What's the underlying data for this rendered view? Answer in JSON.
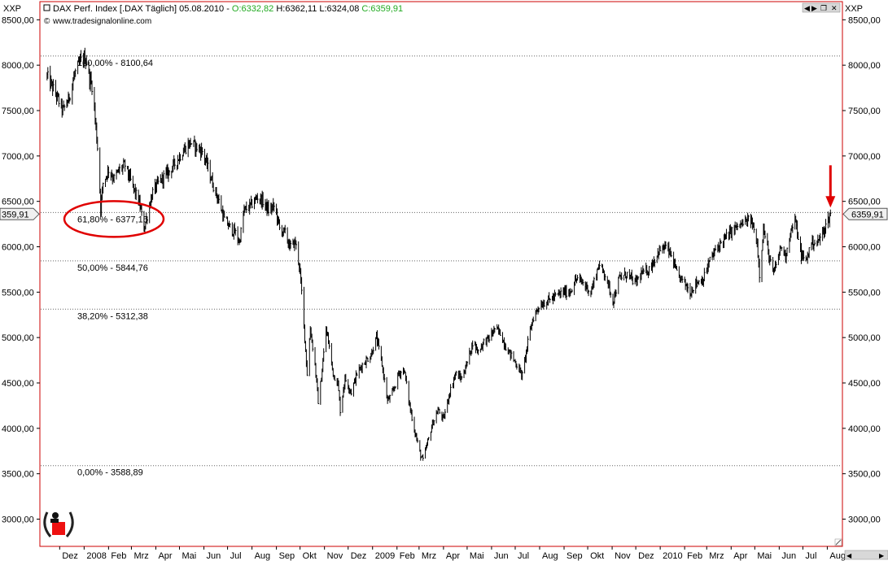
{
  "window": {
    "corner_left_label": "XXP",
    "corner_right_label": "XXP",
    "header": {
      "instrument": "DAX Perf. Index [.DAX  Täglich] 05.08.2010 - ",
      "open": "O:6332,82",
      "high": "H:6362,11",
      "low": "L:6324,08",
      "close": "C:6359,91",
      "open_color": "#22aa22",
      "close_color": "#22aa22"
    },
    "source": "www.tradesignalonline.com",
    "current_price_left": "359,91",
    "current_price_right": "6359,91",
    "frame_color": "#cc0000"
  },
  "chart_data": {
    "type": "candlestick",
    "title": "DAX Perf. Index [.DAX  Täglich] 05.08.2010",
    "y_ticks": [
      "3000,00",
      "3500,00",
      "4000,00",
      "4500,00",
      "5000,00",
      "5500,00",
      "6000,00",
      "6500,00",
      "7000,00",
      "7500,00",
      "8000,00",
      "8500,00"
    ],
    "y_tick_values": [
      3000,
      3500,
      4000,
      4500,
      5000,
      5500,
      6000,
      6500,
      7000,
      7500,
      8000,
      8500
    ],
    "ylim": [
      2700,
      8700
    ],
    "x_ticks": [
      "Dez",
      "2008",
      "Feb",
      "Mrz",
      "Apr",
      "Mai",
      "Jun",
      "Jul",
      "Aug",
      "Sep",
      "Okt",
      "Nov",
      "Dez",
      "2009",
      "Feb",
      "Mrz",
      "Apr",
      "Mai",
      "Jun",
      "Jul",
      "Aug",
      "Sep",
      "Okt",
      "Nov",
      "Dez",
      "2010",
      "Feb",
      "Mrz",
      "Apr",
      "Mai",
      "Jun",
      "Jul",
      "Aug"
    ],
    "x_tick_dates": [
      "2007-12-01",
      "2008-01-01",
      "2008-02-01",
      "2008-03-01",
      "2008-04-01",
      "2008-05-01",
      "2008-06-01",
      "2008-07-01",
      "2008-08-01",
      "2008-09-01",
      "2008-10-01",
      "2008-11-01",
      "2008-12-01",
      "2009-01-01",
      "2009-02-01",
      "2009-03-01",
      "2009-04-01",
      "2009-05-01",
      "2009-06-01",
      "2009-07-01",
      "2009-08-01",
      "2009-09-01",
      "2009-10-01",
      "2009-11-01",
      "2009-12-01",
      "2010-01-01",
      "2010-02-01",
      "2010-03-01",
      "2010-04-01",
      "2010-05-01",
      "2010-06-01",
      "2010-07-01",
      "2010-08-01"
    ],
    "fib_levels": [
      {
        "label": "100,00% - 8100,64",
        "value": 8100.64
      },
      {
        "label": "61,80% - 6377,15",
        "value": 6377.15
      },
      {
        "label": "50,00% - 5844,76",
        "value": 5844.76
      },
      {
        "label": "38,20% - 5312,38",
        "value": 5312.38
      },
      {
        "label": "0,00% - 3588,89",
        "value": 3588.89
      }
    ],
    "highlight": {
      "ellipse_on": "61,80% - 6377,15",
      "arrow_at": "2010-08-05",
      "color": "#e00000"
    },
    "last_close": 6359.91,
    "price_path": [
      {
        "date": "2007-11-15",
        "value": 7880
      },
      {
        "date": "2007-11-25",
        "value": 7700
      },
      {
        "date": "2007-12-05",
        "value": 7500
      },
      {
        "date": "2007-12-12",
        "value": 7620
      },
      {
        "date": "2007-12-20",
        "value": 7900
      },
      {
        "date": "2007-12-28",
        "value": 8050
      },
      {
        "date": "2008-01-03",
        "value": 8080
      },
      {
        "date": "2008-01-08",
        "value": 7850
      },
      {
        "date": "2008-01-12",
        "value": 7750
      },
      {
        "date": "2008-01-16",
        "value": 7300
      },
      {
        "date": "2008-01-19",
        "value": 7000
      },
      {
        "date": "2008-01-22",
        "value": 6430
      },
      {
        "date": "2008-01-25",
        "value": 6700
      },
      {
        "date": "2008-02-01",
        "value": 6850
      },
      {
        "date": "2008-02-08",
        "value": 6750
      },
      {
        "date": "2008-02-15",
        "value": 6850
      },
      {
        "date": "2008-02-22",
        "value": 6900
      },
      {
        "date": "2008-03-01",
        "value": 6700
      },
      {
        "date": "2008-03-08",
        "value": 6550
      },
      {
        "date": "2008-03-12",
        "value": 6450
      },
      {
        "date": "2008-03-17",
        "value": 6200
      },
      {
        "date": "2008-03-22",
        "value": 6380
      },
      {
        "date": "2008-03-28",
        "value": 6600
      },
      {
        "date": "2008-04-04",
        "value": 6700
      },
      {
        "date": "2008-04-12",
        "value": 6780
      },
      {
        "date": "2008-04-20",
        "value": 6850
      },
      {
        "date": "2008-04-28",
        "value": 6950
      },
      {
        "date": "2008-05-05",
        "value": 7050
      },
      {
        "date": "2008-05-15",
        "value": 7150
      },
      {
        "date": "2008-05-22",
        "value": 7100
      },
      {
        "date": "2008-05-30",
        "value": 7050
      },
      {
        "date": "2008-06-05",
        "value": 6900
      },
      {
        "date": "2008-06-12",
        "value": 6700
      },
      {
        "date": "2008-06-20",
        "value": 6500
      },
      {
        "date": "2008-06-27",
        "value": 6300
      },
      {
        "date": "2008-07-05",
        "value": 6200
      },
      {
        "date": "2008-07-11",
        "value": 6150
      },
      {
        "date": "2008-07-16",
        "value": 6050
      },
      {
        "date": "2008-07-22",
        "value": 6400
      },
      {
        "date": "2008-07-30",
        "value": 6450
      },
      {
        "date": "2008-08-08",
        "value": 6550
      },
      {
        "date": "2008-08-15",
        "value": 6500
      },
      {
        "date": "2008-08-22",
        "value": 6400
      },
      {
        "date": "2008-08-30",
        "value": 6450
      },
      {
        "date": "2008-09-05",
        "value": 6200
      },
      {
        "date": "2008-09-12",
        "value": 6150
      },
      {
        "date": "2008-09-18",
        "value": 6000
      },
      {
        "date": "2008-09-25",
        "value": 6050
      },
      {
        "date": "2008-09-30",
        "value": 5800
      },
      {
        "date": "2008-10-03",
        "value": 5500
      },
      {
        "date": "2008-10-07",
        "value": 5000
      },
      {
        "date": "2008-10-10",
        "value": 4600
      },
      {
        "date": "2008-10-14",
        "value": 5100
      },
      {
        "date": "2008-10-20",
        "value": 4700
      },
      {
        "date": "2008-10-24",
        "value": 4300
      },
      {
        "date": "2008-10-28",
        "value": 4550
      },
      {
        "date": "2008-11-03",
        "value": 5100
      },
      {
        "date": "2008-11-07",
        "value": 4900
      },
      {
        "date": "2008-11-12",
        "value": 4600
      },
      {
        "date": "2008-11-18",
        "value": 4500
      },
      {
        "date": "2008-11-21",
        "value": 4200
      },
      {
        "date": "2008-11-27",
        "value": 4550
      },
      {
        "date": "2008-12-05",
        "value": 4400
      },
      {
        "date": "2008-12-12",
        "value": 4600
      },
      {
        "date": "2008-12-19",
        "value": 4700
      },
      {
        "date": "2008-12-30",
        "value": 4810
      },
      {
        "date": "2009-01-06",
        "value": 5000
      },
      {
        "date": "2009-01-13",
        "value": 4700
      },
      {
        "date": "2009-01-20",
        "value": 4300
      },
      {
        "date": "2009-01-27",
        "value": 4400
      },
      {
        "date": "2009-02-03",
        "value": 4600
      },
      {
        "date": "2009-02-10",
        "value": 4650
      },
      {
        "date": "2009-02-17",
        "value": 4250
      },
      {
        "date": "2009-02-24",
        "value": 3950
      },
      {
        "date": "2009-03-03",
        "value": 3700
      },
      {
        "date": "2009-03-06",
        "value": 3650
      },
      {
        "date": "2009-03-12",
        "value": 3850
      },
      {
        "date": "2009-03-18",
        "value": 4050
      },
      {
        "date": "2009-03-25",
        "value": 4200
      },
      {
        "date": "2009-04-01",
        "value": 4100
      },
      {
        "date": "2009-04-09",
        "value": 4400
      },
      {
        "date": "2009-04-16",
        "value": 4600
      },
      {
        "date": "2009-04-24",
        "value": 4550
      },
      {
        "date": "2009-05-02",
        "value": 4750
      },
      {
        "date": "2009-05-08",
        "value": 4950
      },
      {
        "date": "2009-05-15",
        "value": 4850
      },
      {
        "date": "2009-05-22",
        "value": 4950
      },
      {
        "date": "2009-05-30",
        "value": 5000
      },
      {
        "date": "2009-06-05",
        "value": 5100
      },
      {
        "date": "2009-06-12",
        "value": 5050
      },
      {
        "date": "2009-06-19",
        "value": 4900
      },
      {
        "date": "2009-06-26",
        "value": 4800
      },
      {
        "date": "2009-07-03",
        "value": 4700
      },
      {
        "date": "2009-07-10",
        "value": 4580
      },
      {
        "date": "2009-07-16",
        "value": 4900
      },
      {
        "date": "2009-07-23",
        "value": 5200
      },
      {
        "date": "2009-07-31",
        "value": 5350
      },
      {
        "date": "2009-08-10",
        "value": 5400
      },
      {
        "date": "2009-08-20",
        "value": 5450
      },
      {
        "date": "2009-08-31",
        "value": 5500
      },
      {
        "date": "2009-09-08",
        "value": 5500
      },
      {
        "date": "2009-09-17",
        "value": 5650
      },
      {
        "date": "2009-09-25",
        "value": 5600
      },
      {
        "date": "2009-10-05",
        "value": 5500
      },
      {
        "date": "2009-10-15",
        "value": 5800
      },
      {
        "date": "2009-10-23",
        "value": 5700
      },
      {
        "date": "2009-11-02",
        "value": 5400
      },
      {
        "date": "2009-11-10",
        "value": 5650
      },
      {
        "date": "2009-11-20",
        "value": 5700
      },
      {
        "date": "2009-11-30",
        "value": 5600
      },
      {
        "date": "2009-12-08",
        "value": 5700
      },
      {
        "date": "2009-12-18",
        "value": 5750
      },
      {
        "date": "2009-12-30",
        "value": 5950
      },
      {
        "date": "2010-01-08",
        "value": 6000
      },
      {
        "date": "2010-01-15",
        "value": 5900
      },
      {
        "date": "2010-01-22",
        "value": 5700
      },
      {
        "date": "2010-02-01",
        "value": 5600
      },
      {
        "date": "2010-02-08",
        "value": 5500
      },
      {
        "date": "2010-02-15",
        "value": 5600
      },
      {
        "date": "2010-02-25",
        "value": 5650
      },
      {
        "date": "2010-03-05",
        "value": 5850
      },
      {
        "date": "2010-03-15",
        "value": 6000
      },
      {
        "date": "2010-03-25",
        "value": 6100
      },
      {
        "date": "2010-04-05",
        "value": 6200
      },
      {
        "date": "2010-04-15",
        "value": 6250
      },
      {
        "date": "2010-04-26",
        "value": 6300
      },
      {
        "date": "2010-05-04",
        "value": 6050
      },
      {
        "date": "2010-05-07",
        "value": 5700
      },
      {
        "date": "2010-05-12",
        "value": 6200
      },
      {
        "date": "2010-05-20",
        "value": 5850
      },
      {
        "date": "2010-05-25",
        "value": 5700
      },
      {
        "date": "2010-06-03",
        "value": 6000
      },
      {
        "date": "2010-06-09",
        "value": 5900
      },
      {
        "date": "2010-06-15",
        "value": 6150
      },
      {
        "date": "2010-06-21",
        "value": 6300
      },
      {
        "date": "2010-06-29",
        "value": 5900
      },
      {
        "date": "2010-07-05",
        "value": 5850
      },
      {
        "date": "2010-07-12",
        "value": 6050
      },
      {
        "date": "2010-07-20",
        "value": 6050
      },
      {
        "date": "2010-07-26",
        "value": 6150
      },
      {
        "date": "2010-08-02",
        "value": 6300
      },
      {
        "date": "2010-08-05",
        "value": 6360
      }
    ]
  }
}
